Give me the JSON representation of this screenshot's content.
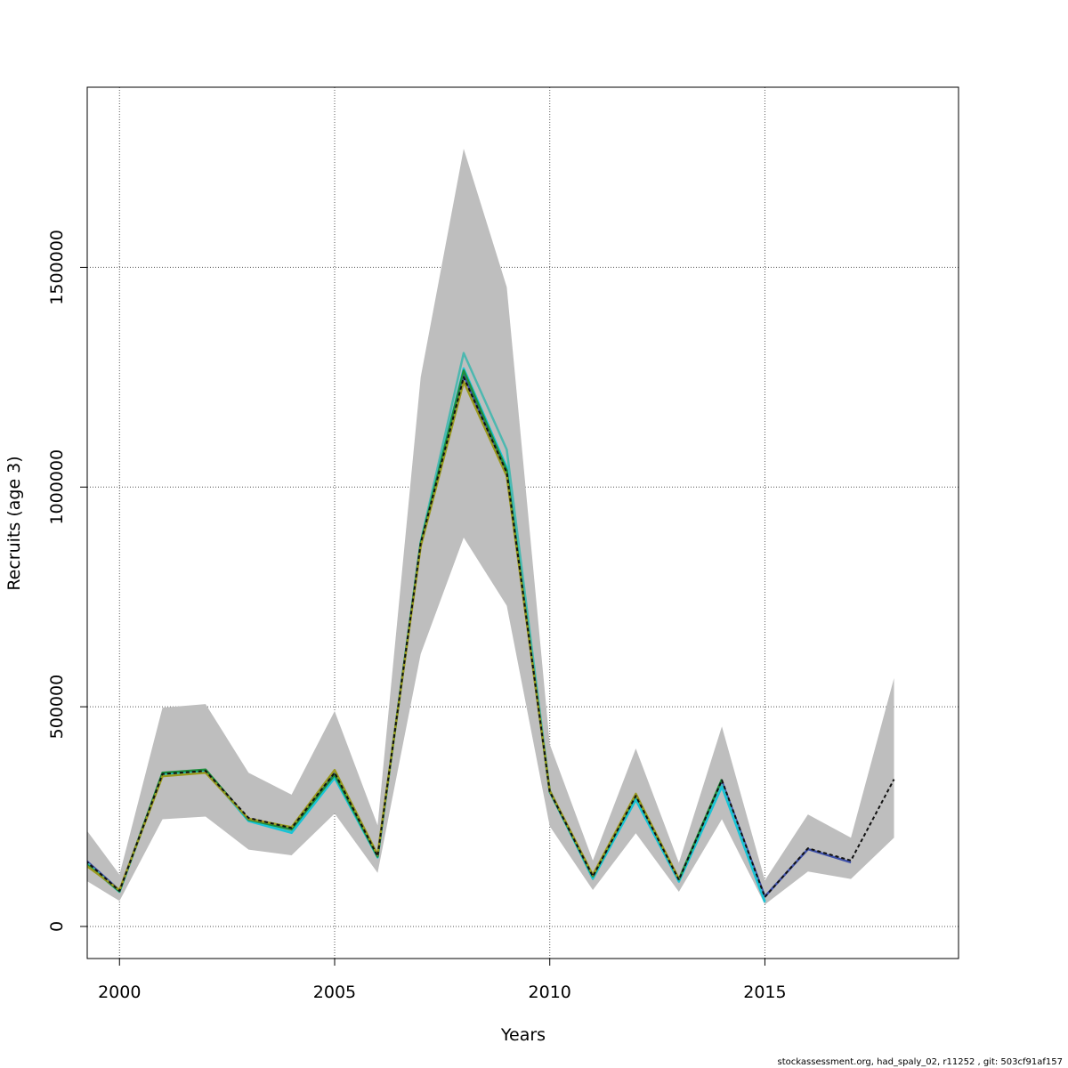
{
  "chart_data": {
    "type": "line",
    "xlabel": "Years",
    "ylabel": "Recruits (age 3)",
    "xlim": [
      1999.25,
      2019.5
    ],
    "ylim": [
      -73000,
      1910000
    ],
    "x_ticks": [
      2000,
      2005,
      2010,
      2015
    ],
    "y_ticks": [
      0,
      500000,
      1000000,
      1500000
    ],
    "x_tick_labels": [
      "2000",
      "2005",
      "2010",
      "2015"
    ],
    "y_tick_labels": [
      "0",
      "500000",
      "1000000",
      "1500000"
    ],
    "grid": true,
    "x": [
      1999,
      2000,
      2001,
      2002,
      2003,
      2004,
      2005,
      2006,
      2007,
      2008,
      2009,
      2010,
      2011,
      2012,
      2013,
      2014,
      2015,
      2016,
      2017,
      2018
    ],
    "confidence_band": {
      "color": "#bebebe",
      "upper": [
        250000,
        118000,
        498000,
        506000,
        350000,
        300000,
        490000,
        230000,
        1250000,
        1770000,
        1455000,
        415000,
        150000,
        405000,
        145000,
        455000,
        105000,
        255000,
        202000,
        565000
      ],
      "lower": [
        118000,
        58000,
        244000,
        250000,
        175000,
        162000,
        257000,
        122000,
        620000,
        885000,
        730000,
        228000,
        83000,
        212000,
        79000,
        244000,
        50000,
        125000,
        108000,
        202000
      ]
    },
    "series": [
      {
        "color": "#3d4fa8",
        "dashed": false,
        "values": [
          170000,
          82000,
          345000,
          352000,
          243000,
          222000,
          348000,
          160000,
          870000,
          1255000,
          1030000,
          308000,
          115000,
          298000,
          106000,
          330000,
          68000,
          176000,
          146000,
          null
        ]
      },
      {
        "color": "#4db8b0",
        "dashed": false,
        "values": [
          165000,
          80000,
          348000,
          355000,
          241000,
          215000,
          340000,
          158000,
          875000,
          1305000,
          1085000,
          310000,
          108000,
          290000,
          103000,
          322000,
          58000,
          null,
          null,
          null
        ]
      },
      {
        "color": "#18c4d6",
        "dashed": false,
        "values": [
          162000,
          79000,
          346000,
          354000,
          240000,
          213000,
          338000,
          157000,
          873000,
          1270000,
          1045000,
          306000,
          110000,
          288000,
          102000,
          318000,
          55000,
          null,
          null,
          null
        ]
      },
      {
        "color": "#1f8e3d",
        "dashed": false,
        "values": [
          160000,
          80000,
          350000,
          357000,
          243000,
          221000,
          345000,
          159000,
          872000,
          1265000,
          1038000,
          307000,
          114000,
          299000,
          107000,
          335000,
          null,
          null,
          null,
          null
        ]
      },
      {
        "color": "#9a9a1e",
        "dashed": false,
        "values": [
          155000,
          83000,
          342000,
          350000,
          245000,
          226000,
          356000,
          163000,
          865000,
          1240000,
          1025000,
          309000,
          117000,
          302000,
          108000,
          null,
          null,
          null,
          null,
          null
        ]
      },
      {
        "color": "#111111",
        "dashed": true,
        "values": [
          168000,
          81000,
          347000,
          354000,
          247000,
          224000,
          350000,
          160000,
          872000,
          1250000,
          1033000,
          307000,
          114000,
          297000,
          106000,
          333000,
          67000,
          178000,
          150000,
          335000
        ]
      }
    ]
  },
  "footer": "stockassessment.org, had_spaly_02, r11252 , git: 503cf91af157"
}
